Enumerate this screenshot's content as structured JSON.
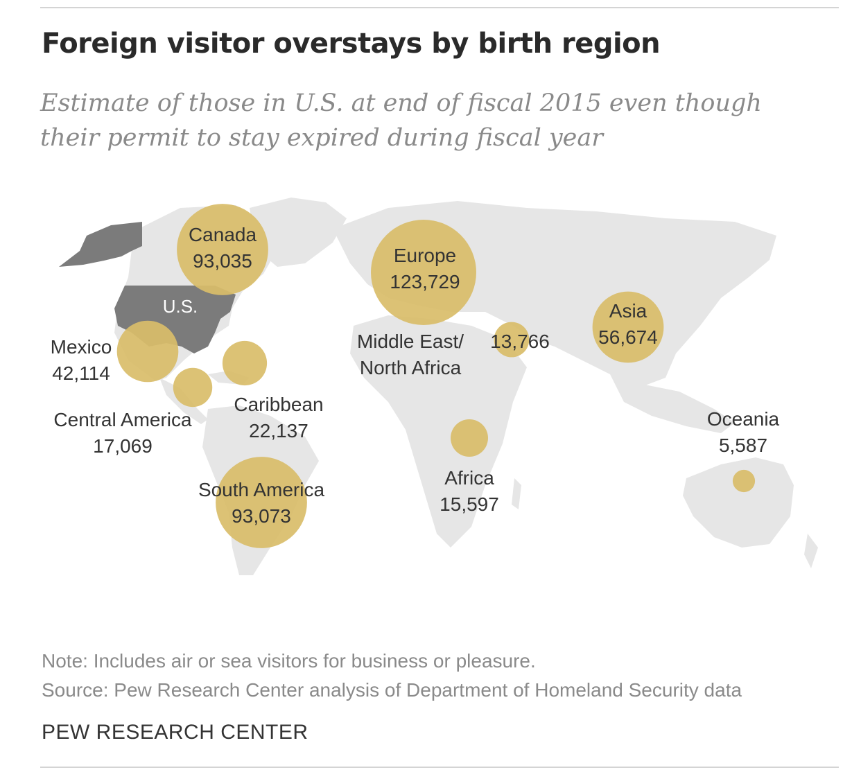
{
  "title": "Foreign visitor overstays by birth region",
  "subtitle": "Estimate of those in U.S. at end of fiscal 2015 even though their permit to stay expired during fiscal year",
  "highlight_label": "U.S.",
  "note": "Note: Includes air or sea visitors for business or pleasure.",
  "source": "Source: Pew Research Center analysis of Department of Homeland Security data",
  "brand": "PEW RESEARCH CENTER",
  "colors": {
    "bubble": "#d9bd69",
    "land": "#e6e6e6",
    "highlight": "#7b7b7b"
  },
  "regions": [
    {
      "name": "Canada",
      "value": "93,035",
      "count": 93035
    },
    {
      "name": "Europe",
      "value": "123,729",
      "count": 123729
    },
    {
      "name": "Asia",
      "value": "56,674",
      "count": 56674
    },
    {
      "name": "Mexico",
      "value": "42,114",
      "count": 42114
    },
    {
      "name_line1": "Middle East/",
      "name_line2": "North Africa",
      "value": "13,766",
      "count": 13766
    },
    {
      "name": "Caribbean",
      "value": "22,137",
      "count": 22137
    },
    {
      "name": "Central America",
      "value": "17,069",
      "count": 17069
    },
    {
      "name": "Oceania",
      "value": "5,587",
      "count": 5587
    },
    {
      "name": "Africa",
      "value": "15,597",
      "count": 15597
    },
    {
      "name": "South America",
      "value": "93,073",
      "count": 93073
    }
  ]
}
